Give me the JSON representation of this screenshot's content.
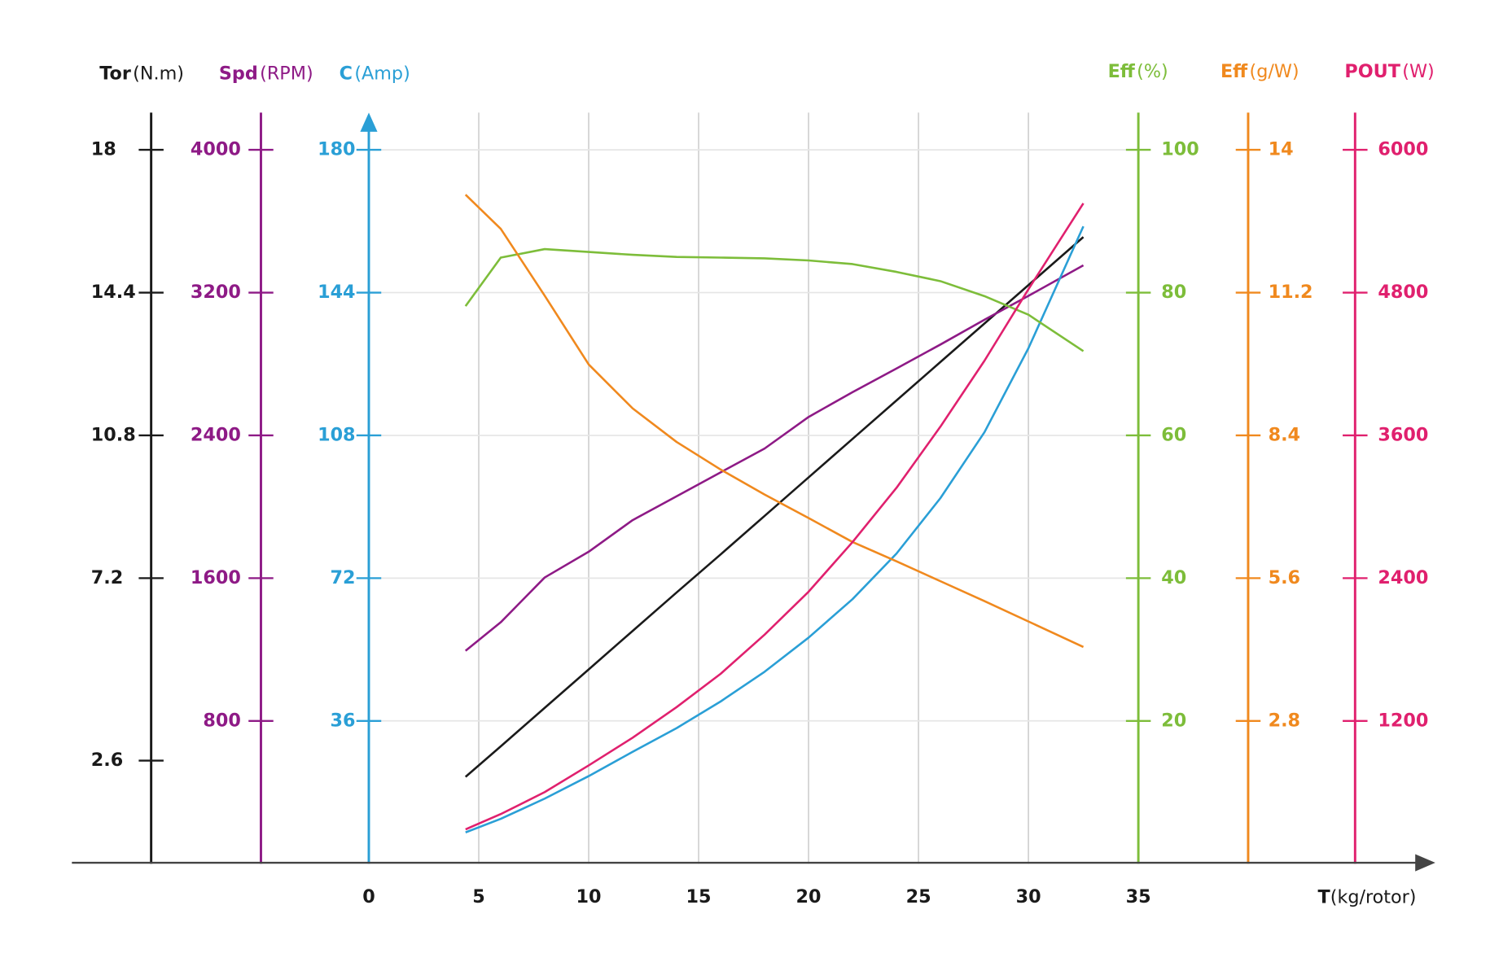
{
  "chart_data": {
    "type": "line",
    "x": [
      4.4,
      6,
      8,
      10,
      12,
      14,
      16,
      18,
      20,
      22,
      24,
      26,
      28,
      30,
      32.5
    ],
    "xlim": [
      0,
      35
    ],
    "xticks": [
      0,
      5,
      10,
      15,
      20,
      25,
      30,
      35
    ],
    "x_label": {
      "name": "T",
      "unit": "(kg/rotor)"
    },
    "grid": true,
    "axes": [
      {
        "name": "Tor",
        "unit": "(N.m)",
        "color": "#1a1a1a",
        "side": "left",
        "ylim": [
          0,
          18
        ],
        "yticks": [
          2.6,
          7.2,
          10.8,
          14.4,
          18
        ],
        "values": [
          2.19,
          2.96,
          3.93,
          4.9,
          5.87,
          6.84,
          7.8,
          8.77,
          9.74,
          10.71,
          11.68,
          12.65,
          13.62,
          14.59,
          15.8
        ]
      },
      {
        "name": "Spd",
        "unit": "(RPM)",
        "color": "#8e1a86",
        "side": "left",
        "ylim": [
          0,
          4000
        ],
        "yticks": [
          800,
          1600,
          2400,
          3200,
          4000
        ],
        "values": [
          1193,
          1353,
          1604,
          1748,
          1925,
          2059,
          2193,
          2326,
          2503,
          2642,
          2775,
          2909,
          3048,
          3182,
          3353
        ]
      },
      {
        "name": "C",
        "unit": "(Amp)",
        "color": "#2a9fd6",
        "side": "left",
        "ylim": [
          0,
          180
        ],
        "yticks": [
          36,
          72,
          108,
          144,
          180
        ],
        "values": [
          7.9,
          11.3,
          16.4,
          22.1,
          28.2,
          34.2,
          40.9,
          48.4,
          57.0,
          66.7,
          78.2,
          92.2,
          108.8,
          130.0,
          160.7
        ]
      },
      {
        "name": "Eff",
        "unit": "(%)",
        "color": "#7dbd3a",
        "side": "right",
        "ylim": [
          0,
          100
        ],
        "yticks": [
          20,
          40,
          60,
          80,
          100
        ],
        "values": [
          78.1,
          84.9,
          86.1,
          85.7,
          85.3,
          85.0,
          84.9,
          84.8,
          84.5,
          84.0,
          82.9,
          81.6,
          79.5,
          76.9,
          71.8
        ]
      },
      {
        "name": "Eff",
        "unit": "(g/W)",
        "color": "#f0891e",
        "side": "right",
        "ylim": [
          0,
          14
        ],
        "yticks": [
          2.8,
          5.6,
          8.4,
          11.2,
          14
        ],
        "values": [
          13.12,
          12.45,
          11.14,
          9.79,
          8.93,
          8.27,
          7.73,
          7.24,
          6.78,
          6.31,
          5.93,
          5.54,
          5.15,
          4.75,
          4.25
        ]
      },
      {
        "name": "POUT",
        "unit": "(W)",
        "color": "#e0206e",
        "side": "right",
        "ylim": [
          0,
          6000
        ],
        "yticks": [
          1200,
          2400,
          3600,
          4800,
          6000
        ],
        "values": [
          289,
          417,
          602,
          826,
          1059,
          1316,
          1596,
          1925,
          2286,
          2703,
          3160,
          3674,
          4227,
          4829,
          5551
        ]
      }
    ]
  }
}
